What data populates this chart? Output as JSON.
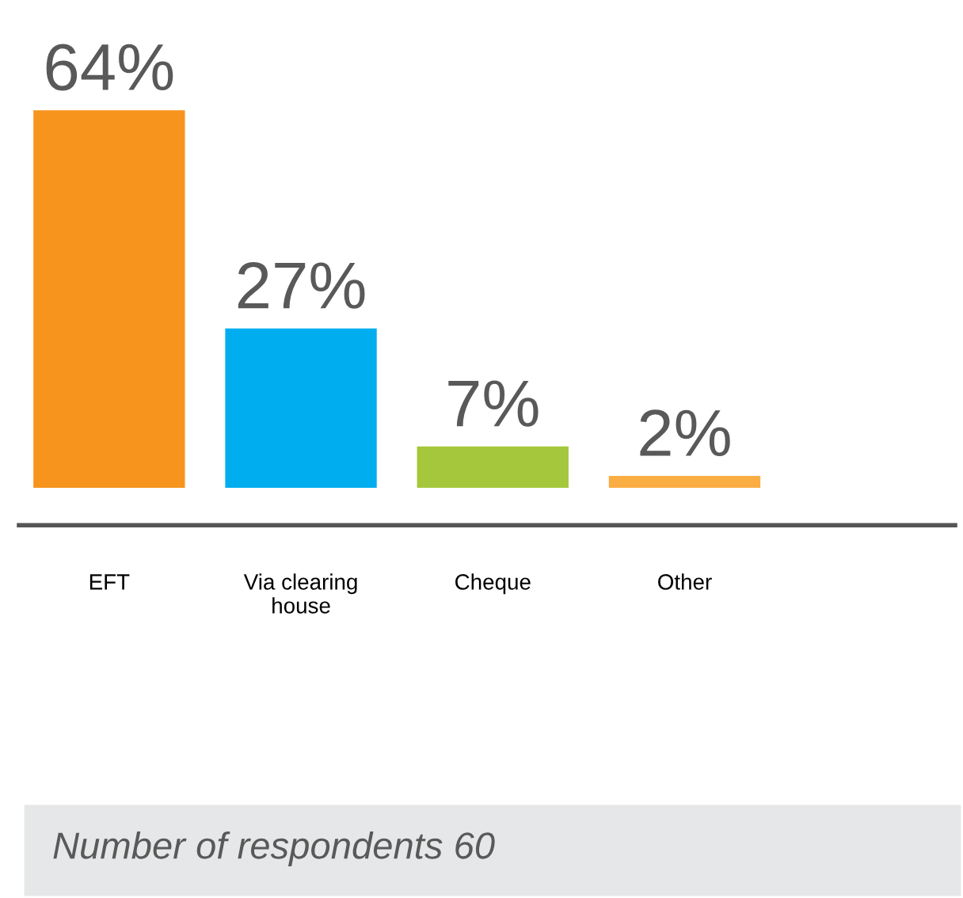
{
  "chart_data": {
    "type": "bar",
    "categories": [
      "EFT",
      "Via clearing\nhouse",
      "Cheque",
      "Other"
    ],
    "values": [
      64,
      27,
      7,
      2
    ],
    "colors": [
      "#f7941d",
      "#00aeef",
      "#a5c73b",
      "#f9ad42"
    ],
    "value_labels": [
      "64%",
      "27%",
      "7%",
      "2%"
    ],
    "tick_labels": "x",
    "grid": false,
    "legend": false,
    "annotations": [
      "Number of respondents 60"
    ]
  }
}
